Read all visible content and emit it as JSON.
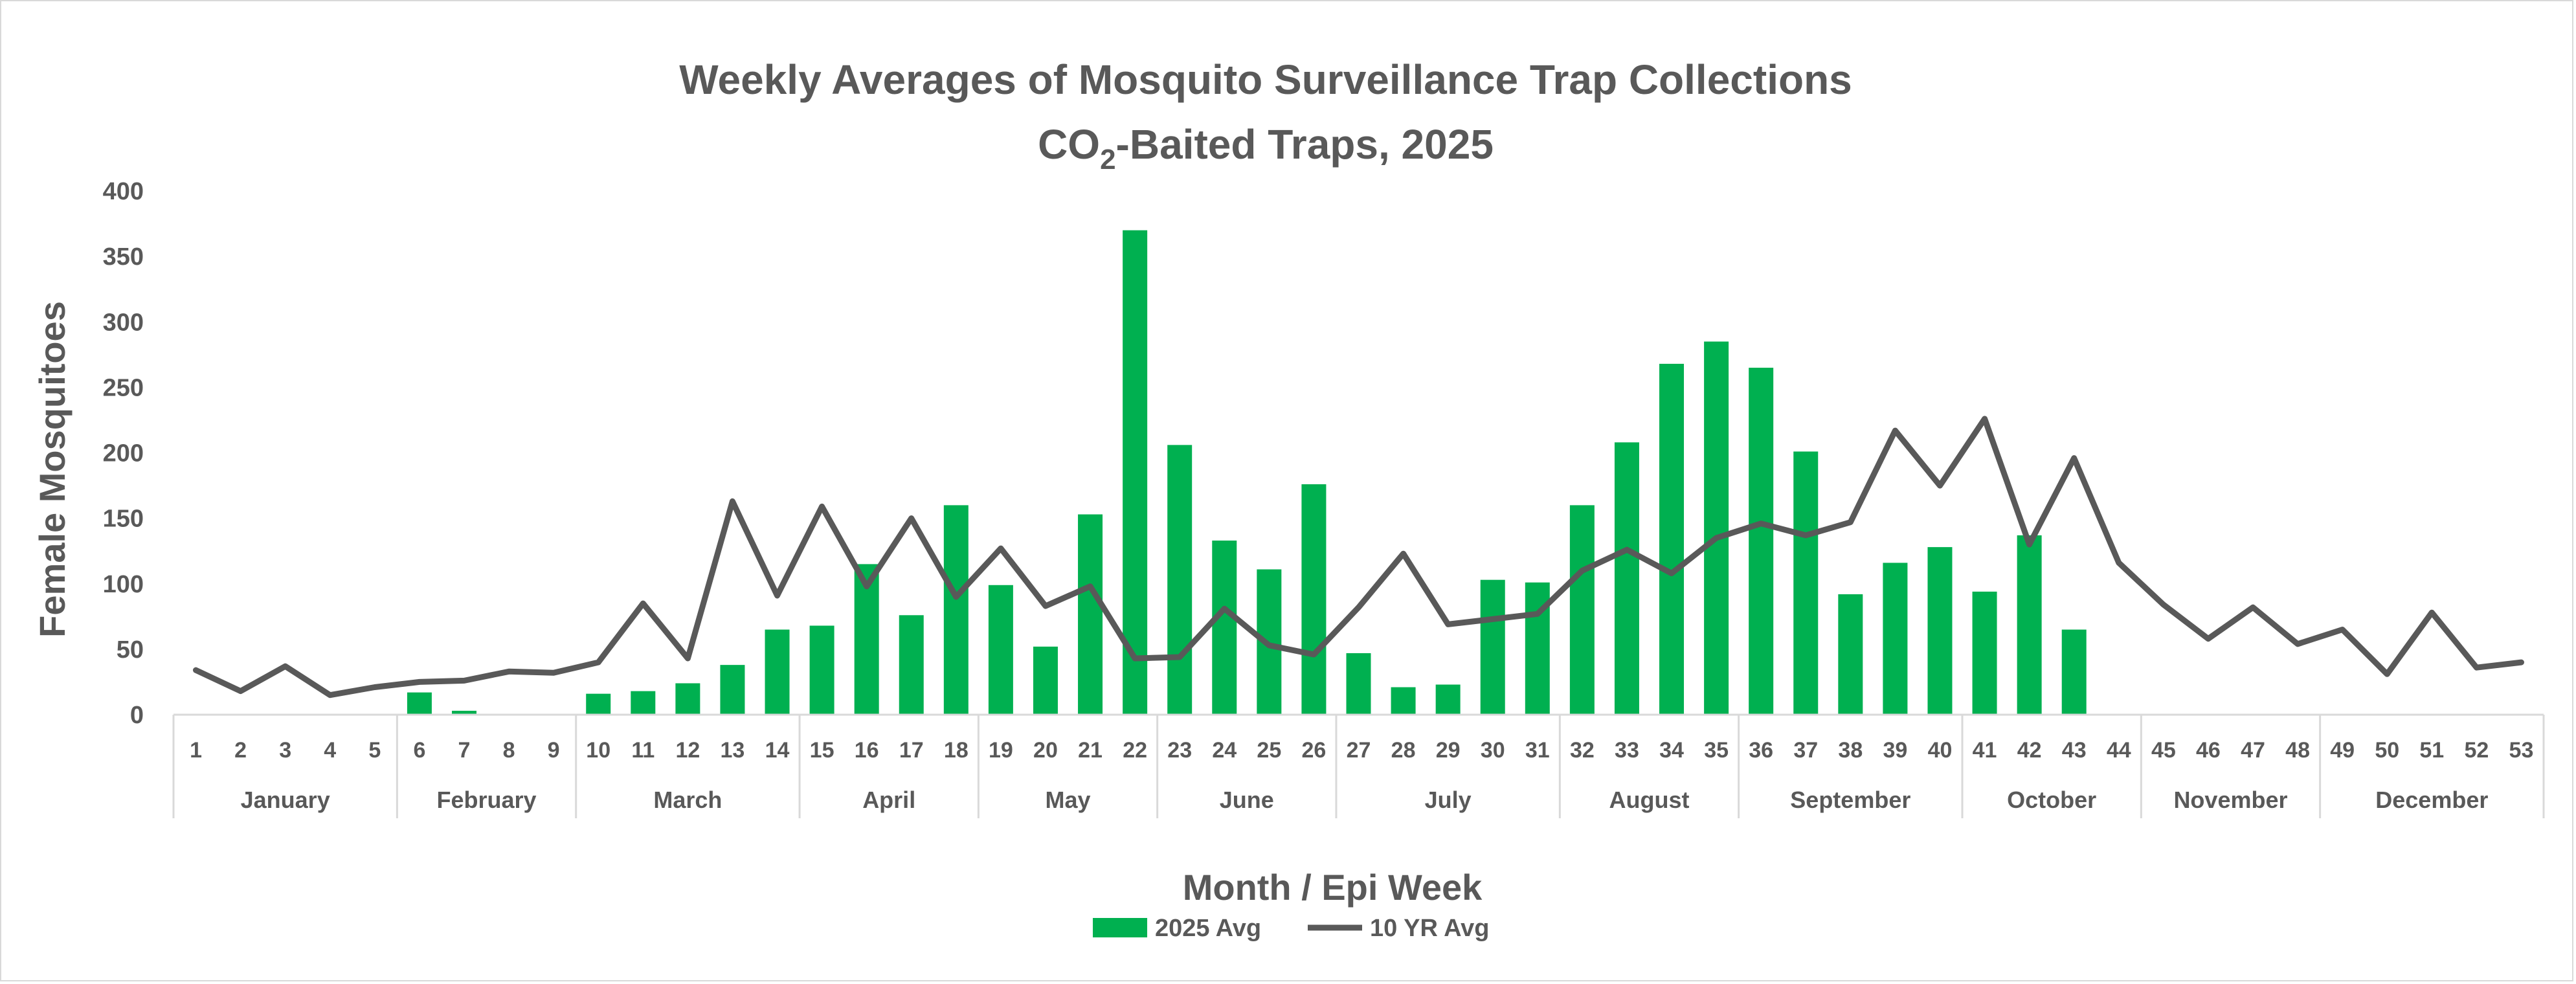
{
  "chart_data": {
    "type": "bar",
    "title_line1": "Weekly Averages of Mosquito Surveillance Trap Collections",
    "title_line2_prefix": "CO",
    "title_line2_sub": "2",
    "title_line2_suffix": "-Baited Traps, 2025",
    "xlabel": "Month / Epi Week",
    "ylabel": "Female Mosquitoes",
    "ylim": [
      0,
      400
    ],
    "yticks": [
      "0",
      "50",
      "100",
      "150",
      "200",
      "250",
      "300",
      "350",
      "400"
    ],
    "weeks": [
      "1",
      "2",
      "3",
      "4",
      "5",
      "6",
      "7",
      "8",
      "9",
      "10",
      "11",
      "12",
      "13",
      "14",
      "15",
      "16",
      "17",
      "18",
      "19",
      "20",
      "21",
      "22",
      "23",
      "24",
      "25",
      "26",
      "27",
      "28",
      "29",
      "30",
      "31",
      "32",
      "33",
      "34",
      "35",
      "36",
      "37",
      "38",
      "39",
      "40",
      "41",
      "42",
      "43",
      "44",
      "45",
      "46",
      "47",
      "48",
      "49",
      "50",
      "51",
      "52",
      "53"
    ],
    "months": [
      {
        "name": "January",
        "start": 1,
        "end": 5
      },
      {
        "name": "February",
        "start": 6,
        "end": 9
      },
      {
        "name": "March",
        "start": 10,
        "end": 14
      },
      {
        "name": "April",
        "start": 15,
        "end": 18
      },
      {
        "name": "May",
        "start": 19,
        "end": 22
      },
      {
        "name": "June",
        "start": 23,
        "end": 26
      },
      {
        "name": "July",
        "start": 27,
        "end": 31
      },
      {
        "name": "August",
        "start": 32,
        "end": 35
      },
      {
        "name": "September",
        "start": 36,
        "end": 40
      },
      {
        "name": "October",
        "start": 41,
        "end": 44
      },
      {
        "name": "November",
        "start": 45,
        "end": 48
      },
      {
        "name": "December",
        "start": 49,
        "end": 53
      }
    ],
    "series": [
      {
        "name": "2025 Avg",
        "kind": "bar",
        "color": "#00b050",
        "values": [
          0,
          0,
          0,
          0,
          0,
          17,
          3,
          0,
          0,
          16,
          18,
          24,
          38,
          65,
          68,
          115,
          76,
          160,
          99,
          52,
          153,
          370,
          206,
          133,
          111,
          176,
          47,
          21,
          23,
          103,
          101,
          160,
          208,
          268,
          285,
          265,
          201,
          92,
          116,
          128,
          94,
          137,
          65,
          null,
          null,
          null,
          null,
          null,
          null,
          null,
          null,
          null,
          null
        ]
      },
      {
        "name": "10 YR Avg",
        "kind": "line",
        "color": "#595959",
        "values": [
          34,
          18,
          37,
          15,
          21,
          25,
          26,
          33,
          32,
          40,
          85,
          43,
          163,
          91,
          159,
          98,
          150,
          90,
          127,
          83,
          98,
          43,
          44,
          81,
          53,
          46,
          82,
          123,
          69,
          73,
          77,
          110,
          126,
          108,
          135,
          146,
          137,
          147,
          217,
          175,
          226,
          130,
          196,
          116,
          84,
          58,
          82,
          54,
          65,
          31,
          78,
          36,
          40
        ]
      }
    ],
    "legend": [
      {
        "label": "2025 Avg",
        "swatch": "bar",
        "color": "#00b050"
      },
      {
        "label": "10 YR Avg",
        "swatch": "line",
        "color": "#595959"
      }
    ]
  }
}
